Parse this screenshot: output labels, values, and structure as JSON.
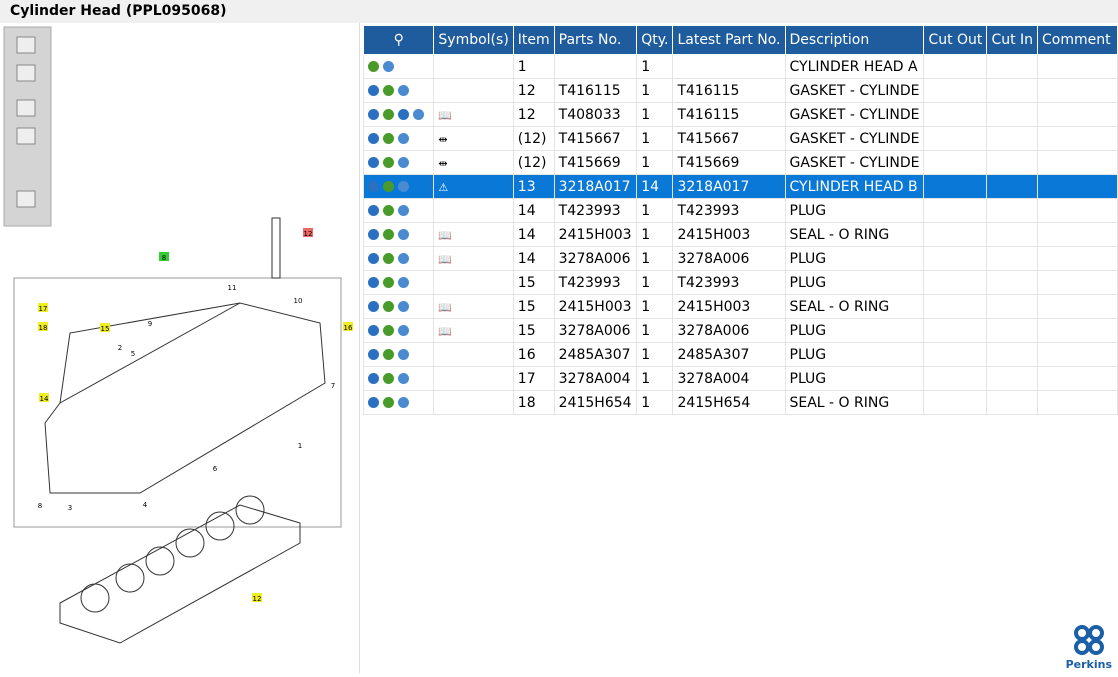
{
  "header": {
    "title": "Cylinder Head (PPL095068)"
  },
  "diagram": {
    "callouts": [
      "12",
      "8",
      "11",
      "10",
      "16",
      "17",
      "18",
      "15",
      "9",
      "2",
      "5",
      "14",
      "7",
      "1",
      "6",
      "8",
      "3",
      "4",
      "12"
    ]
  },
  "table": {
    "columns": [
      "Symbol(s)",
      "Item",
      "Parts No.",
      "Qty.",
      "Latest Part No.",
      "Description",
      "Cut Out",
      "Cut In",
      "Comment"
    ],
    "rows": [
      [
        "1",
        null,
        "1",
        null,
        "CYLINDER HEAD A"
      ],
      [
        "12",
        "T416115",
        "1",
        "T416115",
        "GASKET - CYLINDE"
      ],
      [
        "12",
        "T408033",
        "1",
        "T416115",
        "GASKET - CYLINDE"
      ],
      [
        "(12)",
        "T415667",
        "1",
        "T415667",
        "GASKET - CYLINDE"
      ],
      [
        "(12)",
        "T415669",
        "1",
        "T415669",
        "GASKET - CYLINDE"
      ],
      [
        "13",
        "3218A017",
        "14",
        "3218A017",
        "CYLINDER HEAD B"
      ],
      [
        "14",
        "T423993",
        "1",
        "T423993",
        "PLUG"
      ],
      [
        "14",
        "2415H003",
        "1",
        "2415H003",
        "SEAL - O RING"
      ],
      [
        "14",
        "3278A006",
        "1",
        "3278A006",
        "PLUG"
      ],
      [
        "15",
        "T423993",
        "1",
        "T423993",
        "PLUG"
      ],
      [
        "15",
        "2415H003",
        "1",
        "2415H003",
        "SEAL - O RING"
      ],
      [
        "15",
        "3278A006",
        "1",
        "3278A006",
        "PLUG"
      ],
      [
        "16",
        "2485A307",
        "1",
        "2485A307",
        "PLUG"
      ],
      [
        "17",
        "3278A004",
        "1",
        "3278A004",
        "PLUG"
      ],
      [
        "18",
        "2415H654",
        "1",
        "2415H654",
        "SEAL - O RING"
      ]
    ]
  },
  "logo": {
    "text": "Perkins"
  }
}
